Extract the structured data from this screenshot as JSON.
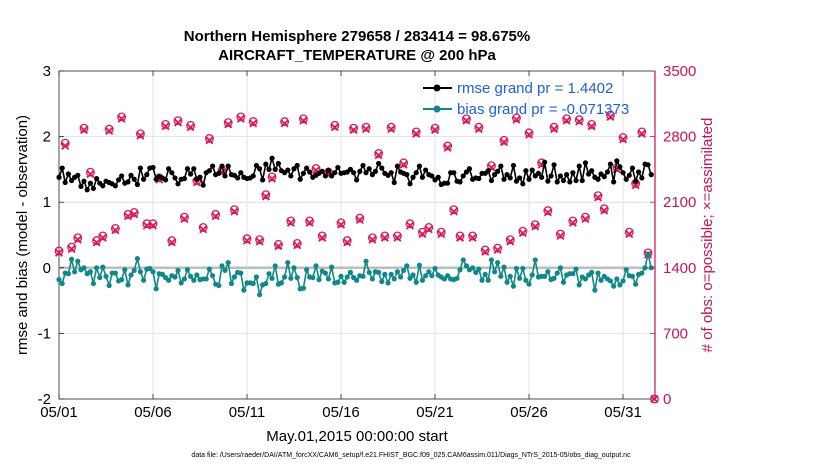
{
  "chart_data": {
    "type": "line",
    "title": "Northern Hemisphere 279658 / 283414 = 98.675%",
    "subtitle": "AIRCRAFT_TEMPERATURE @ 200 hPa",
    "xlabel": "May.01,2015 00:00:00 start",
    "ylabel_left": "rmse and bias (model - observation)",
    "ylabel_right": "# of obs: o=possible; ×=assimilated",
    "xlim": [
      0,
      31.7
    ],
    "ylim_left": [
      -2,
      3
    ],
    "ylim_right": [
      0,
      3500
    ],
    "x_ticks": [
      0,
      5,
      10,
      15,
      20,
      25,
      30
    ],
    "x_tick_labels": [
      "05/01",
      "05/06",
      "05/11",
      "05/16",
      "05/21",
      "05/26",
      "05/31"
    ],
    "y_ticks_left": [
      -2,
      -1,
      0,
      1,
      2,
      3
    ],
    "y_ticks_right": [
      0,
      700,
      1400,
      2100,
      2800,
      3500
    ],
    "grid": true,
    "legend_location": "top-right",
    "colors": {
      "rmse": "#000000",
      "bias": "#118888",
      "counts": "#d8185c",
      "right_axis": "#c51558",
      "legend_text": "#1f5fd6",
      "zero_line": "#bdbdbd"
    },
    "rmse_times": [
      0.0,
      0.17,
      0.33,
      0.5,
      0.67,
      0.83,
      1.0,
      1.17,
      1.33,
      1.5,
      1.67,
      1.83,
      2.0,
      2.17,
      2.33,
      2.5,
      2.67,
      2.83,
      3.0,
      3.17,
      3.33,
      3.5,
      3.67,
      3.83,
      4.0,
      4.17,
      4.33,
      4.5,
      4.67,
      4.83,
      5.0,
      5.17,
      5.33,
      5.5,
      5.67,
      5.83,
      6.0,
      6.17,
      6.33,
      6.5,
      6.67,
      6.83,
      7.0,
      7.17,
      7.33,
      7.5,
      7.67,
      7.83,
      8.0,
      8.17,
      8.33,
      8.5,
      8.67,
      8.83,
      9.0,
      9.17,
      9.33,
      9.5,
      9.67,
      9.83,
      10.0,
      10.17,
      10.33,
      10.5,
      10.67,
      10.83,
      11.0,
      11.17,
      11.33,
      11.5,
      11.67,
      11.83,
      12.0,
      12.17,
      12.33,
      12.5,
      12.67,
      12.83,
      13.0,
      13.17,
      13.33,
      13.5,
      13.67,
      13.83,
      14.0,
      14.17,
      14.33,
      14.5,
      14.67,
      14.83,
      15.0,
      15.17,
      15.33,
      15.5,
      15.67,
      15.83,
      16.0,
      16.17,
      16.33,
      16.5,
      16.67,
      16.83,
      17.0,
      17.17,
      17.33,
      17.5,
      17.67,
      17.83,
      18.0,
      18.17,
      18.33,
      18.5,
      18.67,
      18.83,
      19.0,
      19.17,
      19.33,
      19.5,
      19.67,
      19.83,
      20.0,
      20.17,
      20.33,
      20.5,
      20.67,
      20.83,
      21.0,
      21.17,
      21.33,
      21.5,
      21.67,
      21.83,
      22.0,
      22.17,
      22.33,
      22.5,
      22.67,
      22.83,
      23.0,
      23.17,
      23.33,
      23.5,
      23.67,
      23.83,
      24.0,
      24.17,
      24.33,
      24.5,
      24.67,
      24.83,
      25.0,
      25.17,
      25.33,
      25.5,
      25.67,
      25.83,
      26.0,
      26.17,
      26.33,
      26.5,
      26.67,
      26.83,
      27.0,
      27.17,
      27.33,
      27.5,
      27.67,
      27.83,
      28.0,
      28.17,
      28.33,
      28.5,
      28.67,
      28.83,
      29.0,
      29.17,
      29.33,
      29.5,
      29.67,
      29.83,
      30.0,
      30.17,
      30.33,
      30.5,
      30.67,
      30.83,
      31.0,
      31.17,
      31.33,
      31.5
    ],
    "rmse": [
      1.38,
      1.52,
      1.3,
      1.43,
      1.33,
      1.38,
      1.41,
      1.24,
      1.32,
      1.19,
      1.29,
      1.21,
      1.36,
      1.29,
      1.25,
      1.32,
      1.3,
      1.28,
      1.25,
      1.34,
      1.4,
      1.29,
      1.31,
      1.41,
      1.35,
      1.27,
      1.52,
      1.35,
      1.42,
      1.52,
      1.53,
      1.35,
      1.39,
      1.37,
      1.34,
      1.51,
      1.45,
      1.37,
      1.28,
      1.35,
      1.36,
      1.51,
      1.43,
      1.51,
      1.35,
      1.38,
      1.26,
      1.45,
      1.48,
      1.55,
      1.42,
      1.44,
      1.55,
      1.4,
      1.55,
      1.42,
      1.41,
      1.37,
      1.45,
      1.38,
      1.36,
      1.37,
      1.4,
      1.56,
      1.51,
      1.34,
      1.58,
      1.5,
      1.67,
      1.5,
      1.59,
      1.48,
      1.45,
      1.49,
      1.4,
      1.51,
      1.56,
      1.35,
      1.44,
      1.52,
      1.46,
      1.38,
      1.41,
      1.44,
      1.47,
      1.4,
      1.49,
      1.4,
      1.45,
      1.53,
      1.44,
      1.45,
      1.46,
      1.5,
      1.45,
      1.34,
      1.47,
      1.56,
      1.45,
      1.51,
      1.42,
      1.47,
      1.59,
      1.52,
      1.44,
      1.41,
      1.45,
      1.3,
      1.55,
      1.46,
      1.44,
      1.42,
      1.28,
      1.38,
      1.45,
      1.55,
      1.38,
      1.49,
      1.42,
      1.4,
      1.34,
      1.38,
      1.27,
      1.29,
      1.29,
      1.45,
      1.45,
      1.32,
      1.31,
      1.4,
      1.46,
      1.51,
      1.35,
      1.37,
      1.36,
      1.44,
      1.44,
      1.48,
      1.33,
      1.42,
      1.47,
      1.55,
      1.35,
      1.42,
      1.37,
      1.56,
      1.32,
      1.37,
      1.28,
      1.48,
      1.35,
      1.49,
      1.4,
      1.44,
      1.38,
      1.61,
      1.32,
      1.4,
      1.57,
      1.31,
      1.4,
      1.33,
      1.42,
      1.31,
      1.45,
      1.33,
      1.55,
      1.33,
      1.6,
      1.43,
      1.48,
      1.38,
      1.35,
      1.43,
      1.39,
      1.46,
      1.58,
      1.31,
      1.63,
      1.54,
      1.45,
      1.35,
      1.41,
      1.52,
      1.32,
      1.46,
      1.37,
      1.58,
      1.57,
      1.42,
      1.34,
      1.36
    ],
    "bias": [
      -0.18,
      -0.24,
      -0.08,
      -0.09,
      0.13,
      -0.06,
      0.1,
      -0.03,
      0.0,
      -0.09,
      -0.06,
      -0.24,
      0.0,
      -0.15,
      0.01,
      -0.13,
      -0.27,
      -0.08,
      -0.08,
      -0.2,
      -0.18,
      -0.03,
      -0.26,
      -0.11,
      -0.04,
      0.14,
      -0.06,
      -0.19,
      -0.02,
      -0.01,
      -0.06,
      -0.32,
      -0.09,
      -0.1,
      -0.15,
      -0.19,
      -0.12,
      -0.14,
      -0.04,
      -0.23,
      -0.17,
      -0.03,
      -0.13,
      -0.19,
      -0.11,
      -0.18,
      -0.17,
      -0.17,
      -0.02,
      -0.12,
      -0.25,
      -0.27,
      0.03,
      -0.04,
      0.08,
      -0.24,
      -0.14,
      -0.07,
      -0.08,
      -0.34,
      -0.23,
      -0.23,
      -0.24,
      -0.14,
      -0.41,
      -0.26,
      -0.24,
      -0.09,
      -0.16,
      0.03,
      -0.25,
      -0.23,
      -0.14,
      0.08,
      -0.16,
      -0.0,
      -0.15,
      -0.32,
      -0.31,
      -0.03,
      -0.14,
      -0.15,
      0.03,
      -0.18,
      -0.05,
      -0.08,
      -0.17,
      0.01,
      -0.23,
      -0.22,
      -0.13,
      -0.22,
      -0.14,
      -0.07,
      -0.15,
      -0.19,
      -0.12,
      -0.13,
      0.1,
      -0.07,
      -0.17,
      -0.06,
      -0.07,
      -0.21,
      -0.1,
      -0.23,
      -0.1,
      -0.17,
      -0.06,
      -0.14,
      -0.04,
      0.03,
      -0.16,
      -0.11,
      -0.22,
      0.04,
      -0.19,
      -0.12,
      -0.06,
      -0.12,
      -0.01,
      -0.11,
      -0.14,
      -0.17,
      -0.12,
      -0.17,
      -0.18,
      -0.16,
      -0.03,
      0.12,
      0.03,
      -0.03,
      0.0,
      -0.07,
      -0.02,
      -0.19,
      -0.1,
      -0.19,
      0.12,
      -0.06,
      0.08,
      -0.13,
      0.01,
      -0.22,
      -0.13,
      -0.28,
      -0.01,
      -0.16,
      -0.01,
      -0.19,
      -0.25,
      -0.11,
      0.12,
      -0.14,
      -0.13,
      -0.13,
      -0.06,
      -0.18,
      -0.16,
      -0.08,
      0.0,
      -0.22,
      -0.11,
      -0.09,
      -0.09,
      -0.02,
      -0.26,
      -0.14,
      -0.17,
      -0.11,
      -0.07,
      -0.34,
      -0.08,
      -0.19,
      -0.13,
      -0.17,
      -0.2,
      -0.28,
      -0.17,
      -0.26,
      -0.2,
      -0.03,
      -0.12,
      -0.13,
      -0.25,
      -0.1,
      -0.08,
      0.0,
      0.21,
      0.0,
      0.02,
      0.01,
      0.06,
      0.0
    ],
    "obs_times": [
      0.0,
      0.33,
      0.67,
      1.0,
      1.33,
      1.67,
      2.0,
      2.33,
      2.67,
      3.0,
      3.33,
      3.67,
      4.0,
      4.33,
      4.67,
      5.0,
      5.33,
      5.67,
      6.0,
      6.33,
      6.67,
      7.0,
      7.33,
      7.67,
      8.0,
      8.33,
      8.67,
      9.0,
      9.33,
      9.67,
      10.0,
      10.33,
      10.67,
      11.0,
      11.33,
      11.67,
      12.0,
      12.33,
      12.67,
      13.0,
      13.33,
      13.67,
      14.0,
      14.33,
      14.67,
      15.0,
      15.33,
      15.67,
      16.0,
      16.33,
      16.67,
      17.0,
      17.33,
      17.67,
      18.0,
      18.33,
      18.67,
      19.0,
      19.33,
      19.67,
      20.0,
      20.33,
      20.67,
      21.0,
      21.33,
      21.67,
      22.0,
      22.33,
      22.67,
      23.0,
      23.33,
      23.67,
      24.0,
      24.33,
      24.67,
      25.0,
      25.33,
      25.67,
      26.0,
      26.33,
      26.67,
      27.0,
      27.33,
      27.67,
      28.0,
      28.33,
      28.67,
      29.0,
      29.33,
      29.67,
      30.0,
      30.33,
      30.67,
      31.0,
      31.33,
      31.67
    ],
    "obs_possible": [
      1580,
      2730,
      1620,
      1720,
      2890,
      2420,
      1690,
      1740,
      2880,
      1820,
      3010,
      1970,
      1990,
      2830,
      1870,
      1870,
      2360,
      2930,
      1690,
      2970,
      1940,
      2920,
      2330,
      1830,
      2780,
      1970,
      2440,
      2950,
      2020,
      3010,
      1710,
      2960,
      1700,
      2180,
      2370,
      1650,
      2960,
      1900,
      1660,
      2990,
      1900,
      2460,
      1740,
      2420,
      2920,
      1880,
      1690,
      2890,
      1930,
      2900,
      1720,
      2620,
      1740,
      2900,
      1740,
      2520,
      1870,
      2850,
      1780,
      1830,
      2890,
      1780,
      2700,
      2020,
      1740,
      2990,
      1740,
      2900,
      1590,
      2490,
      1610,
      2760,
      1700,
      3000,
      1790,
      2840,
      1860,
      2520,
      2010,
      2900,
      1760,
      2990,
      1900,
      2980,
      1940,
      2930,
      2170,
      2030,
      3030,
      2470,
      2790,
      1780,
      2300,
      2850,
      1560,
      0
    ],
    "obs_assimilated": [
      1560,
      2700,
      1600,
      1700,
      2870,
      2400,
      1670,
      1720,
      2860,
      1800,
      2990,
      1950,
      1970,
      2810,
      1850,
      1850,
      2340,
      2910,
      1670,
      2950,
      1920,
      2900,
      2310,
      1810,
      2760,
      1950,
      2420,
      2930,
      2000,
      2990,
      1690,
      2940,
      1680,
      2160,
      2350,
      1630,
      2940,
      1880,
      1640,
      2970,
      1880,
      2440,
      1720,
      2400,
      2900,
      1860,
      1670,
      2870,
      1910,
      2880,
      1700,
      2600,
      1720,
      2880,
      1720,
      2500,
      1850,
      2830,
      1760,
      1810,
      2870,
      1760,
      2680,
      2000,
      1720,
      2970,
      1720,
      2880,
      1570,
      2470,
      1590,
      2740,
      1680,
      2980,
      1770,
      2820,
      1840,
      2500,
      1990,
      2880,
      1740,
      2970,
      1880,
      2960,
      1920,
      2910,
      2150,
      2010,
      3010,
      2450,
      2770,
      1760,
      2280,
      2830,
      1540,
      0
    ],
    "legend": [
      {
        "label": "rmse  grand pr = 1.4402",
        "color": "#000000"
      },
      {
        "label": "bias  grand pr = -0.071373",
        "color": "#118888"
      }
    ],
    "footer": "data file: /Users/raeder/DAI/ATM_forcXX/CAM6_setup/f.e21.FHIST_BGC.f09_025.CAM6assim.011/Diags_NTrS_2015-05/obs_diag_output.nc"
  }
}
